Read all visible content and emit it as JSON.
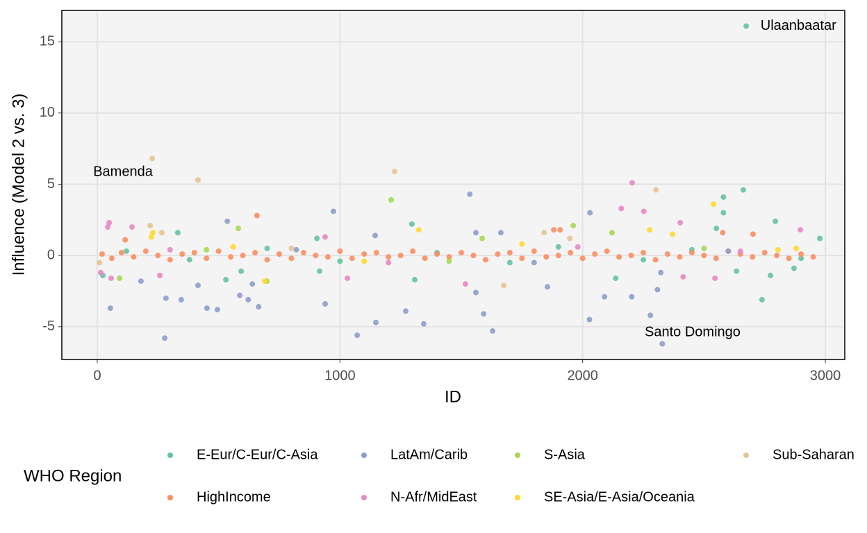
{
  "chart_data": {
    "type": "scatter",
    "x_label": "ID",
    "y_label": "Influence (Model 2 vs. 3)",
    "legend_title": "WHO Region",
    "xlim": [
      -146,
      3080
    ],
    "ylim": [
      -7.3,
      17.2
    ],
    "xticks": [
      0,
      1000,
      2000,
      3000
    ],
    "yticks": [
      -5,
      0,
      5,
      10,
      15
    ],
    "grid": true,
    "legend": "bottom",
    "annotations": [
      {
        "text": "Ulaanbaatar",
        "x": 2889,
        "y": 16.1
      },
      {
        "text": "Bamenda",
        "x": 106,
        "y": 5.85
      },
      {
        "text": "Santo Domingo",
        "x": 2453,
        "y": -5.4
      }
    ],
    "series": [
      {
        "name": "E-Eur/C-Eur/C-Asia",
        "color": "#66c2a5",
        "x": [
          2674,
          2662,
          2580,
          2794,
          2580,
          332,
          905,
          1296,
          2551,
          2977,
          2739,
          2774,
          1308,
          2871,
          23,
          530,
          593,
          2634,
          916,
          2136,
          120,
          380,
          700,
          1000,
          1400,
          1700,
          1900,
          2250,
          2450,
          2900
        ],
        "values": [
          16.1,
          4.6,
          4.1,
          2.4,
          3.0,
          1.6,
          1.2,
          2.2,
          1.9,
          1.2,
          -3.1,
          -1.4,
          -1.7,
          -0.9,
          -1.4,
          -1.7,
          -1.1,
          -1.1,
          -1.1,
          -1.6,
          0.3,
          -0.3,
          0.5,
          -0.4,
          0.2,
          -0.5,
          0.6,
          -0.3,
          0.4,
          -0.2
        ]
      },
      {
        "name": "HighIncome",
        "color": "#fc8d62",
        "x": [
          20,
          60,
          100,
          150,
          200,
          250,
          300,
          350,
          400,
          450,
          500,
          550,
          600,
          650,
          700,
          750,
          800,
          850,
          900,
          950,
          1000,
          1050,
          1100,
          1150,
          1200,
          1250,
          1300,
          1350,
          1400,
          1450,
          1500,
          1550,
          1600,
          1650,
          1700,
          1750,
          1800,
          1850,
          1900,
          1950,
          2000,
          2050,
          2100,
          2150,
          2200,
          2250,
          2300,
          2350,
          2400,
          2450,
          2500,
          2550,
          2600,
          2650,
          2700,
          2750,
          2800,
          2850,
          2900,
          2950,
          658,
          1881,
          1907,
          2702,
          2577,
          115
        ],
        "values": [
          0.1,
          -0.2,
          0.2,
          -0.1,
          0.3,
          0.0,
          -0.3,
          0.1,
          0.2,
          -0.2,
          0.3,
          -0.1,
          0.0,
          0.2,
          -0.3,
          0.1,
          -0.2,
          0.2,
          0.0,
          -0.1,
          0.3,
          -0.2,
          0.1,
          0.2,
          -0.1,
          0.0,
          0.3,
          -0.2,
          0.1,
          -0.1,
          0.2,
          0.0,
          -0.3,
          0.1,
          0.2,
          -0.2,
          0.3,
          -0.1,
          0.0,
          0.2,
          -0.2,
          0.1,
          0.3,
          -0.1,
          0.0,
          0.2,
          -0.3,
          0.1,
          -0.1,
          0.2,
          0.0,
          -0.2,
          0.3,
          0.1,
          -0.1,
          0.2,
          0.0,
          -0.2,
          0.1,
          -0.1,
          2.8,
          1.8,
          1.8,
          1.5,
          1.6,
          1.1
        ]
      },
      {
        "name": "LatAm/Carib",
        "color": "#8da0cb",
        "x": [
          1535,
          973,
          2030,
          536,
          278,
          2328,
          1071,
          1148,
          1345,
          1629,
          2028,
          2279,
          54,
          283,
          346,
          452,
          495,
          587,
          622,
          665,
          939,
          1271,
          1560,
          1592,
          2090,
          2202,
          2308,
          2322,
          415,
          1855,
          180,
          639,
          1560,
          1663,
          1145,
          820,
          1800,
          2600
        ],
        "values": [
          4.3,
          3.1,
          3.0,
          2.4,
          -5.8,
          -6.2,
          -5.6,
          -4.7,
          -4.8,
          -5.3,
          -4.5,
          -4.2,
          -3.7,
          -3.0,
          -3.1,
          -3.7,
          -3.8,
          -2.8,
          -3.1,
          -3.6,
          -3.4,
          -3.9,
          -2.6,
          -4.1,
          -2.9,
          -2.9,
          -2.4,
          -1.2,
          -2.1,
          -2.2,
          -1.8,
          -2.0,
          1.6,
          1.6,
          1.4,
          0.4,
          -0.5,
          0.3
        ]
      },
      {
        "name": "N-Afr/MidEast",
        "color": "#e78ac3",
        "x": [
          2204,
          2159,
          2252,
          2402,
          49,
          43,
          143,
          939,
          57,
          258,
          1031,
          1517,
          2414,
          2897,
          2545,
          14,
          300,
          1200,
          1980,
          2650
        ],
        "values": [
          5.1,
          3.3,
          3.1,
          2.3,
          2.3,
          2.0,
          2.0,
          1.3,
          -1.6,
          -1.4,
          -1.6,
          -2.0,
          -1.5,
          1.8,
          -1.6,
          -1.2,
          0.4,
          -0.5,
          0.6,
          0.3
        ]
      },
      {
        "name": "S-Asia",
        "color": "#a6d854",
        "x": [
          1211,
          581,
          1961,
          1586,
          2121,
          92,
          699,
          450,
          1450,
          2500
        ],
        "values": [
          3.9,
          1.9,
          2.1,
          1.2,
          1.6,
          -1.6,
          -1.8,
          0.4,
          -0.4,
          0.5
        ]
      },
      {
        "name": "SE-Asia/E-Asia/Oceania",
        "color": "#ffd92f",
        "x": [
          2539,
          229,
          1325,
          2276,
          2370,
          690,
          223,
          2805,
          560,
          1100,
          1750,
          2880
        ],
        "values": [
          3.6,
          1.6,
          1.8,
          1.8,
          1.5,
          -1.8,
          1.3,
          0.4,
          0.6,
          -0.4,
          0.8,
          0.5
        ]
      },
      {
        "name": "Sub-Saharan",
        "color": "#e5c494",
        "x": [
          226,
          415,
          1225,
          2302,
          218,
          266,
          1675,
          1841,
          9,
          1947,
          800
        ],
        "values": [
          6.8,
          5.3,
          5.9,
          4.6,
          2.1,
          1.6,
          -2.1,
          1.6,
          -0.5,
          1.2,
          0.5
        ]
      }
    ]
  }
}
